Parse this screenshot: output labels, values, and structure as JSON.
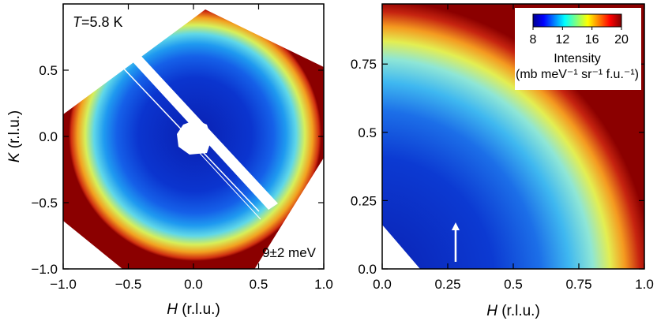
{
  "chart_data": [
    {
      "type": "heatmap",
      "panel": "left",
      "annotation_temperature_symbol": "T",
      "annotation_temperature_value": "=5.8 K",
      "annotation_energy": "9±2 meV",
      "xlabel_symbol": "H",
      "xlabel_unit": " (r.l.u.)",
      "ylabel_symbol": "K",
      "ylabel_unit": " (r.l.u.)",
      "xlim": [
        -1.0,
        1.0
      ],
      "ylim": [
        -1.0,
        1.0
      ],
      "x_ticks": [
        -1.0,
        -0.5,
        0.0,
        0.5,
        1.0
      ],
      "y_ticks": [
        -1.0,
        -0.5,
        0.0,
        0.5
      ],
      "x_tick_labels": [
        "−1.0",
        "−0.5",
        "0.0",
        "0.5",
        "1.0"
      ],
      "y_tick_labels": [
        "−1.0",
        "−0.5",
        "0.0",
        "0.5"
      ],
      "ring_radius_rlu": 0.72,
      "center_intensity": 9,
      "ring_intensity": 17,
      "outside_intensity": 20
    },
    {
      "type": "heatmap",
      "panel": "right",
      "xlabel_symbol": "H",
      "xlabel_unit": " (r.l.u.)",
      "xlim": [
        0.0,
        1.0
      ],
      "ylim": [
        0.0,
        0.97
      ],
      "x_ticks": [
        0.0,
        0.25,
        0.5,
        0.75,
        1.0
      ],
      "y_ticks": [
        0.0,
        0.25,
        0.5,
        0.75
      ],
      "x_tick_labels": [
        "0.0",
        "0.25",
        "0.5",
        "0.75",
        "1.0"
      ],
      "y_tick_labels": [
        "0.0",
        "0.25",
        "0.5",
        "0.75"
      ],
      "arrow_at_h": 0.28,
      "colorbar": {
        "range": [
          8,
          20
        ],
        "tick_labels": [
          "8",
          "12",
          "16",
          "20"
        ],
        "title": "Intensity",
        "unit_line": "(mb meV⁻¹ sr⁻¹ f.u.⁻¹)",
        "colormap": "jet"
      }
    }
  ]
}
